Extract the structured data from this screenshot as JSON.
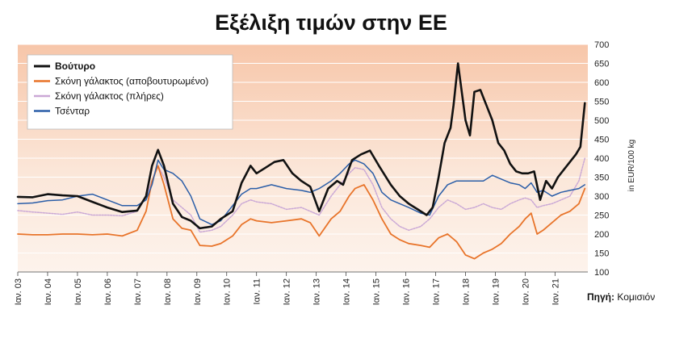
{
  "chart_data": {
    "type": "line",
    "title": "Εξέλιξη τιμών στην ΕΕ",
    "ylabel": "in EUR/100 kg",
    "ylim": [
      100,
      700
    ],
    "yticks": [
      100,
      150,
      200,
      250,
      300,
      350,
      400,
      450,
      500,
      550,
      600,
      650,
      700
    ],
    "xlim": [
      2003,
      2022.1
    ],
    "xticks": [
      {
        "x": 2003,
        "label": "Ιαν. 03"
      },
      {
        "x": 2004,
        "label": "Ιαν. 04"
      },
      {
        "x": 2005,
        "label": "Ιαν. 05"
      },
      {
        "x": 2006,
        "label": "Ιαν. 06"
      },
      {
        "x": 2007,
        "label": "Ιαν. 07"
      },
      {
        "x": 2008,
        "label": "Ιαν. 08"
      },
      {
        "x": 2009,
        "label": "Ιαν. 09"
      },
      {
        "x": 2010,
        "label": "Ιαν. 10"
      },
      {
        "x": 2011,
        "label": "Ιαν. 11"
      },
      {
        "x": 2012,
        "label": "Ιαν. 12"
      },
      {
        "x": 2013,
        "label": "Ιαν. 13"
      },
      {
        "x": 2014,
        "label": "Ιαν. 14"
      },
      {
        "x": 2015,
        "label": "Ιαν. 15"
      },
      {
        "x": 2016,
        "label": "Ιαν. 16"
      },
      {
        "x": 2017,
        "label": "Ιαν. 17"
      },
      {
        "x": 2018,
        "label": "Ιαν. 18"
      },
      {
        "x": 2019,
        "label": "Ιαν. 19"
      },
      {
        "x": 2020,
        "label": "Ιαν. 20"
      },
      {
        "x": 2021,
        "label": "Ιαν. 21"
      }
    ],
    "legend_position": "top-left",
    "grid": true,
    "source": "Πηγή: Κομισιόν",
    "series": [
      {
        "name": "Βούτυρο",
        "color": "#111111",
        "x": [
          2003.0,
          2003.5,
          2004.0,
          2004.5,
          2005.0,
          2005.5,
          2006.0,
          2006.5,
          2007.0,
          2007.3,
          2007.5,
          2007.7,
          2007.9,
          2008.2,
          2008.5,
          2008.8,
          2009.1,
          2009.5,
          2009.8,
          2010.2,
          2010.5,
          2010.8,
          2011.0,
          2011.3,
          2011.6,
          2011.9,
          2012.2,
          2012.5,
          2012.8,
          2013.1,
          2013.4,
          2013.7,
          2013.9,
          2014.2,
          2014.5,
          2014.8,
          2015.1,
          2015.5,
          2015.8,
          2016.1,
          2016.4,
          2016.7,
          2016.9,
          2017.1,
          2017.3,
          2017.5,
          2017.6,
          2017.75,
          2017.9,
          2018.0,
          2018.15,
          2018.3,
          2018.5,
          2018.7,
          2018.9,
          2019.1,
          2019.3,
          2019.5,
          2019.7,
          2019.9,
          2020.1,
          2020.3,
          2020.5,
          2020.7,
          2020.9,
          2021.1,
          2021.3,
          2021.5,
          2021.7,
          2021.85,
          2022.0
        ],
        "y": [
          298,
          297,
          305,
          302,
          300,
          285,
          270,
          258,
          262,
          300,
          380,
          422,
          380,
          280,
          245,
          235,
          215,
          220,
          240,
          260,
          335,
          380,
          360,
          375,
          390,
          395,
          360,
          340,
          325,
          260,
          320,
          340,
          330,
          395,
          410,
          420,
          380,
          330,
          300,
          280,
          265,
          250,
          270,
          350,
          440,
          480,
          540,
          650,
          560,
          500,
          460,
          575,
          580,
          540,
          500,
          440,
          420,
          385,
          365,
          360,
          360,
          365,
          290,
          340,
          320,
          350,
          370,
          390,
          410,
          430,
          545
        ]
      },
      {
        "name": "Σκόνη γάλακτος (αποβουτυρωμένο)",
        "color": "#e8742a",
        "x": [
          2003.0,
          2003.5,
          2004.0,
          2004.5,
          2005.0,
          2005.5,
          2006.0,
          2006.5,
          2007.0,
          2007.3,
          2007.5,
          2007.7,
          2007.9,
          2008.2,
          2008.5,
          2008.8,
          2009.1,
          2009.5,
          2009.8,
          2010.2,
          2010.5,
          2010.8,
          2011.0,
          2011.5,
          2012.0,
          2012.5,
          2012.8,
          2013.1,
          2013.5,
          2013.8,
          2014.1,
          2014.3,
          2014.6,
          2014.9,
          2015.2,
          2015.5,
          2015.8,
          2016.1,
          2016.5,
          2016.8,
          2017.1,
          2017.4,
          2017.7,
          2018.0,
          2018.3,
          2018.6,
          2018.9,
          2019.2,
          2019.5,
          2019.8,
          2020.0,
          2020.2,
          2020.4,
          2020.6,
          2020.9,
          2021.2,
          2021.5,
          2021.8,
          2022.0
        ],
        "y": [
          200,
          198,
          198,
          200,
          200,
          198,
          200,
          195,
          210,
          260,
          340,
          380,
          330,
          240,
          215,
          210,
          170,
          168,
          175,
          195,
          225,
          240,
          235,
          230,
          235,
          240,
          230,
          195,
          240,
          260,
          300,
          320,
          330,
          290,
          240,
          200,
          185,
          175,
          170,
          165,
          190,
          200,
          180,
          145,
          135,
          150,
          160,
          175,
          200,
          220,
          240,
          255,
          200,
          210,
          230,
          250,
          260,
          280,
          320
        ]
      },
      {
        "name": "Σκόνη γάλακτος (πλήρες)",
        "color": "#caa8d6",
        "x": [
          2003.0,
          2003.5,
          2004.0,
          2004.5,
          2005.0,
          2005.5,
          2006.0,
          2006.5,
          2007.0,
          2007.3,
          2007.5,
          2007.7,
          2007.9,
          2008.2,
          2008.5,
          2008.8,
          2009.1,
          2009.5,
          2009.8,
          2010.2,
          2010.5,
          2010.8,
          2011.0,
          2011.5,
          2012.0,
          2012.5,
          2012.8,
          2013.1,
          2013.5,
          2013.8,
          2014.1,
          2014.3,
          2014.6,
          2014.9,
          2015.2,
          2015.5,
          2015.8,
          2016.1,
          2016.5,
          2016.8,
          2017.1,
          2017.4,
          2017.7,
          2018.0,
          2018.3,
          2018.6,
          2018.9,
          2019.2,
          2019.5,
          2019.8,
          2020.0,
          2020.2,
          2020.4,
          2020.6,
          2020.9,
          2021.2,
          2021.5,
          2021.8,
          2022.0
        ],
        "y": [
          262,
          258,
          255,
          252,
          258,
          250,
          250,
          248,
          260,
          300,
          340,
          380,
          350,
          290,
          270,
          250,
          205,
          210,
          220,
          250,
          280,
          290,
          285,
          280,
          265,
          270,
          260,
          250,
          300,
          330,
          360,
          375,
          370,
          330,
          270,
          240,
          220,
          210,
          220,
          240,
          270,
          290,
          280,
          265,
          270,
          280,
          270,
          265,
          280,
          290,
          295,
          290,
          270,
          275,
          280,
          290,
          300,
          340,
          400
        ]
      },
      {
        "name": "Τσένταρ",
        "color": "#2b5ea8",
        "x": [
          2003.0,
          2003.5,
          2004.0,
          2004.5,
          2005.0,
          2005.5,
          2006.0,
          2006.5,
          2007.0,
          2007.3,
          2007.5,
          2007.7,
          2007.9,
          2008.2,
          2008.5,
          2008.8,
          2009.1,
          2009.5,
          2009.8,
          2010.2,
          2010.5,
          2010.8,
          2011.0,
          2011.5,
          2012.0,
          2012.5,
          2012.8,
          2013.1,
          2013.5,
          2013.8,
          2014.1,
          2014.3,
          2014.6,
          2014.9,
          2015.2,
          2015.5,
          2015.8,
          2016.1,
          2016.5,
          2016.8,
          2017.1,
          2017.4,
          2017.7,
          2018.0,
          2018.3,
          2018.6,
          2018.9,
          2019.2,
          2019.5,
          2019.8,
          2020.0,
          2020.2,
          2020.4,
          2020.6,
          2020.9,
          2021.2,
          2021.5,
          2021.8,
          2022.0
        ],
        "y": [
          280,
          282,
          288,
          290,
          300,
          305,
          290,
          275,
          275,
          290,
          330,
          395,
          370,
          360,
          340,
          300,
          240,
          225,
          235,
          275,
          305,
          320,
          320,
          330,
          320,
          315,
          310,
          320,
          340,
          360,
          385,
          395,
          385,
          360,
          310,
          290,
          280,
          270,
          255,
          250,
          300,
          330,
          340,
          340,
          340,
          340,
          355,
          345,
          335,
          330,
          320,
          335,
          310,
          315,
          300,
          310,
          315,
          320,
          330
        ]
      }
    ]
  }
}
